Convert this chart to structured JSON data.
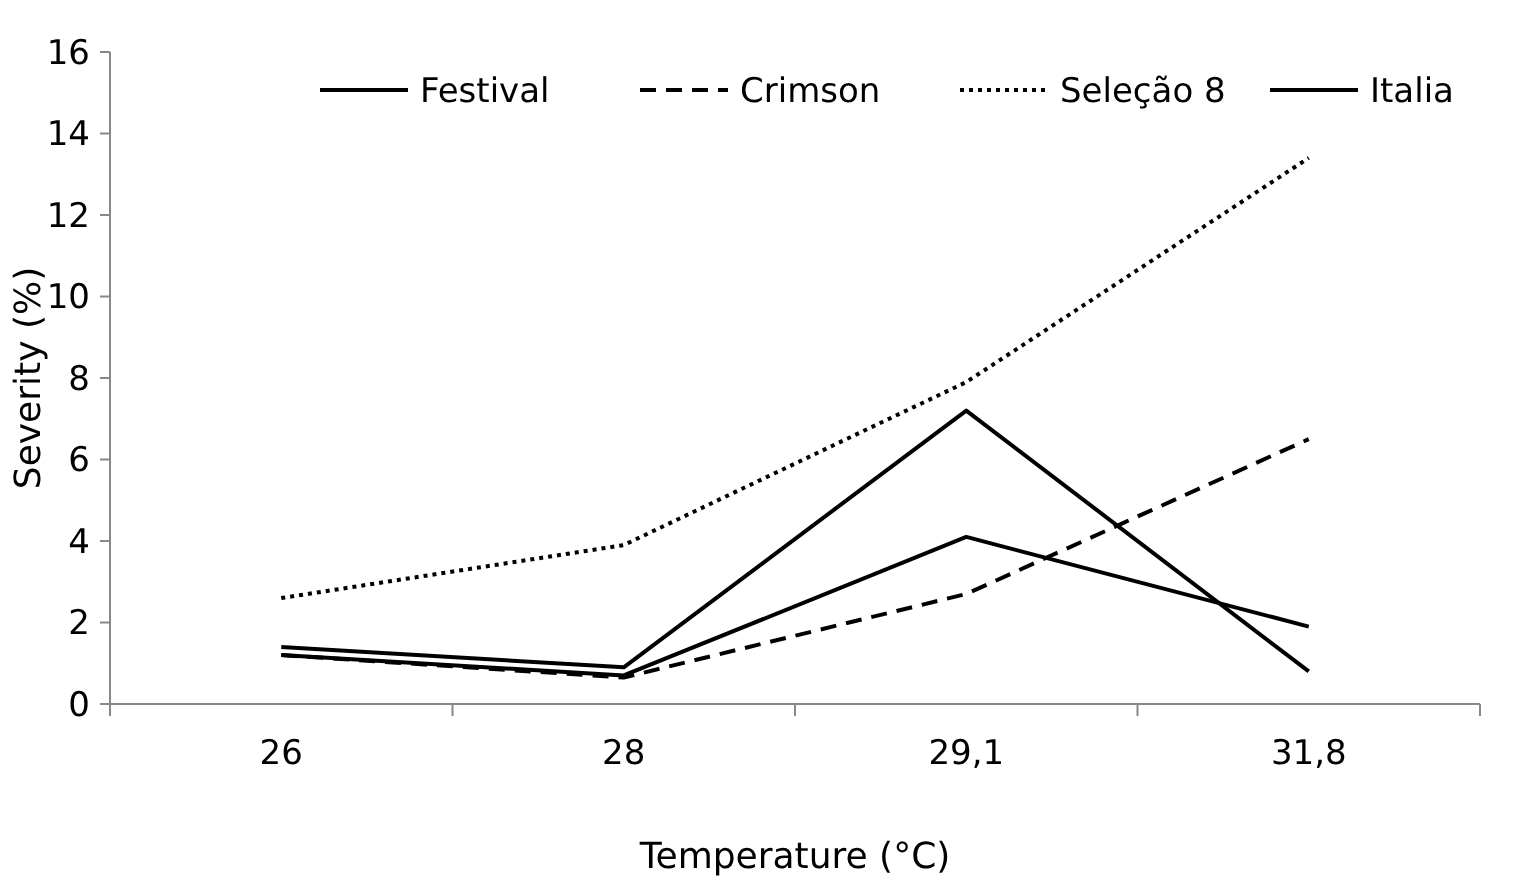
{
  "chart_data": {
    "type": "line",
    "xlabel": "Temperature (°C)",
    "ylabel": "Severity (%)",
    "categories": [
      "26",
      "28",
      "29,1",
      "31,8"
    ],
    "ylim": [
      0,
      16
    ],
    "yticks": [
      0,
      2,
      4,
      6,
      8,
      10,
      12,
      14,
      16
    ],
    "grid": false,
    "legend": "top",
    "marker": "none",
    "series": [
      {
        "name": "Festival",
        "color": "#000000",
        "line_style": "solid",
        "values": [
          1.2,
          0.7,
          4.1,
          1.9
        ]
      },
      {
        "name": "Crimson",
        "color": "#000000",
        "line_style": "dashed",
        "values": [
          1.2,
          0.65,
          2.7,
          6.5
        ]
      },
      {
        "name": "Seleção 8",
        "color": "#000000",
        "line_style": "dotted",
        "values": [
          2.6,
          3.9,
          7.9,
          13.4
        ]
      },
      {
        "name": "Italia",
        "color": "#000000",
        "line_style": "solid",
        "values": [
          1.4,
          0.9,
          7.2,
          0.8
        ]
      }
    ]
  }
}
